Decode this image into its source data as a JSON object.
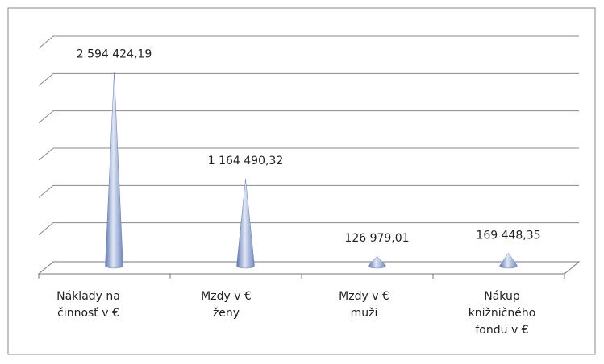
{
  "chart_data": {
    "type": "cone",
    "categories": [
      "Náklady na činnosť v €",
      "Mzdy v € ženy",
      "Mzdy v € muži",
      "Nákup knižničného fondu v €"
    ],
    "values": [
      2594424.19,
      1164490.32,
      126979.01,
      169448.35
    ],
    "value_labels": [
      "2 594 424,19",
      "1 164 490,32",
      "126 979,01",
      "169 448,35"
    ],
    "color": "#8fa6d4",
    "ylim": [
      0,
      3000000
    ],
    "yticks": [
      0,
      500000,
      1000000,
      1500000,
      2000000,
      2500000,
      3000000
    ],
    "grid": true
  }
}
